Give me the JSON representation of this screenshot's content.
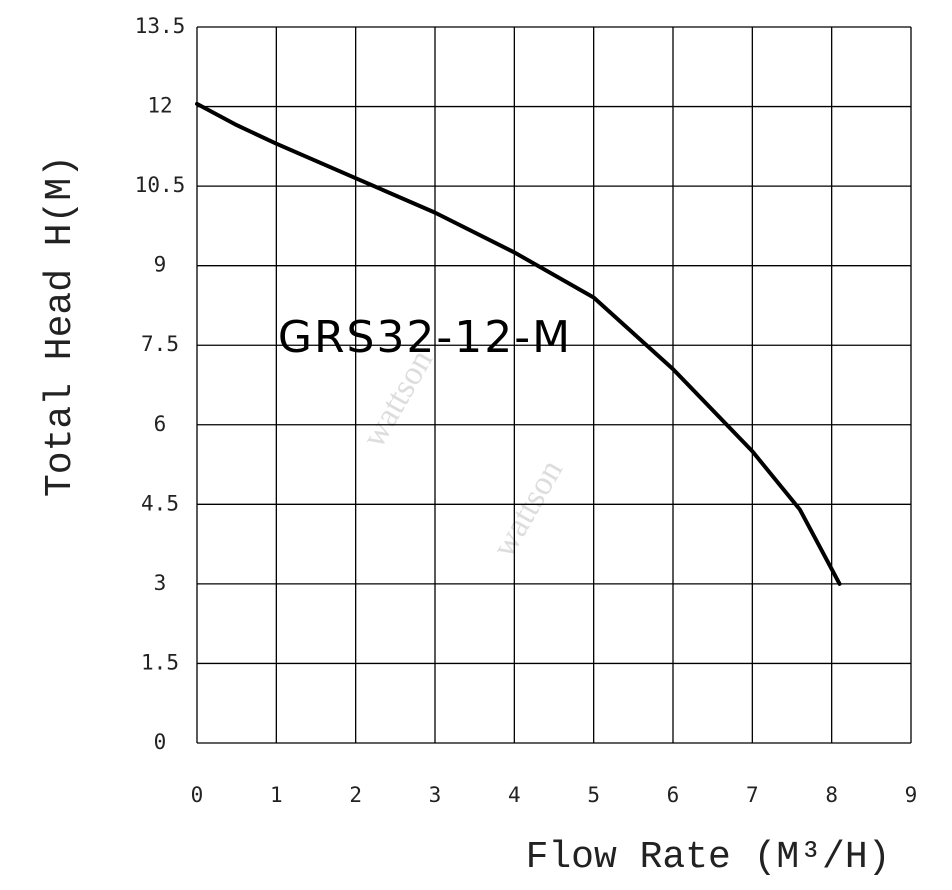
{
  "chart_data": {
    "type": "line",
    "annotation": "GRS32-12-M",
    "watermark": "wattson",
    "x_label": "Flow Rate (M³/H)",
    "y_label": "Total Head H(M)",
    "x": [
      0,
      0.5,
      1,
      2,
      3,
      4,
      5,
      6,
      7,
      7.6,
      8.1
    ],
    "series": [
      {
        "color": "#000000",
        "values": [
          12.05,
          11.65,
          11.3,
          10.65,
          10.0,
          9.25,
          8.4,
          7.05,
          5.5,
          4.4,
          3.0
        ]
      }
    ],
    "xlim": [
      0,
      9
    ],
    "xticks": [
      0,
      1,
      2,
      3,
      4,
      5,
      6,
      7,
      8,
      9
    ],
    "ylim": [
      0,
      13.5
    ],
    "yticks": [
      0,
      1.5,
      3,
      4.5,
      6,
      7.5,
      9,
      10.5,
      12,
      13.5
    ],
    "grid": true
  }
}
